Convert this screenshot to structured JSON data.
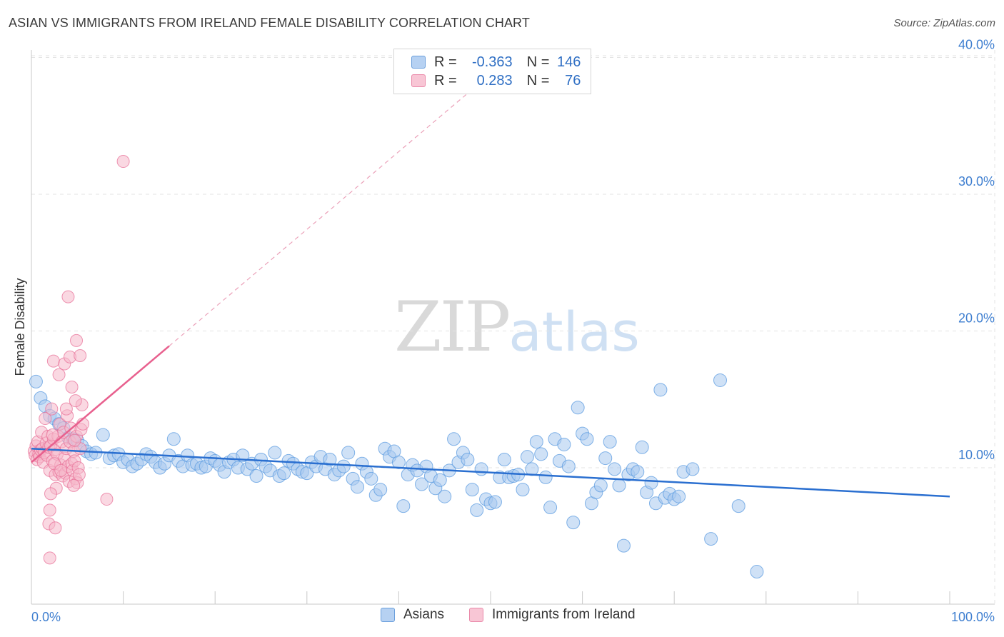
{
  "header": {
    "title": "ASIAN VS IMMIGRANTS FROM IRELAND FEMALE DISABILITY CORRELATION CHART",
    "source": "Source: ZipAtlas.com"
  },
  "watermark": {
    "part1": "ZIP",
    "part2": "atlas"
  },
  "legend": {
    "rows": [
      {
        "r_label": "R =",
        "r_value": "-0.363",
        "n_label": "N =",
        "n_value": "146",
        "color": "#a8c8ef"
      },
      {
        "r_label": "R =",
        "r_value": "0.283",
        "n_label": "N =",
        "n_value": "76",
        "color": "#f6b8cb"
      }
    ]
  },
  "bottom_legend": [
    {
      "label": "Asians",
      "color": "#a8c8ef"
    },
    {
      "label": "Immigrants from Ireland",
      "color": "#f6b8cb"
    }
  ],
  "chart_data": {
    "type": "scatter",
    "title": "ASIAN VS IMMIGRANTS FROM IRELAND FEMALE DISABILITY CORRELATION CHART",
    "xlabel": "",
    "ylabel": "Female Disability",
    "xlim": [
      0,
      100
    ],
    "ylim": [
      0,
      41
    ],
    "x_tick_labels": [
      "0.0%",
      "100.0%"
    ],
    "y_ticks": [
      10,
      20,
      30,
      40
    ],
    "y_tick_labels": [
      "10.0%",
      "20.0%",
      "30.0%",
      "40.0%"
    ],
    "grid": true,
    "series": [
      {
        "name": "Asians",
        "color": "#5b9be0",
        "fill": "#a8c8ef",
        "trend": {
          "x": [
            0,
            100
          ],
          "y": [
            11.4,
            7.9
          ]
        },
        "points": [
          [
            0.5,
            16.3
          ],
          [
            1.0,
            15.1
          ],
          [
            1.5,
            14.5
          ],
          [
            2.0,
            13.8
          ],
          [
            2.5,
            13.6
          ],
          [
            3.0,
            13.2
          ],
          [
            3.5,
            12.9
          ],
          [
            4.0,
            12.2
          ],
          [
            4.5,
            12.1
          ],
          [
            5.0,
            12.0
          ],
          [
            5.5,
            11.6
          ],
          [
            6.0,
            11.2
          ],
          [
            6.5,
            11.0
          ],
          [
            7.0,
            11.1
          ],
          [
            7.8,
            12.4
          ],
          [
            8.5,
            10.7
          ],
          [
            9.0,
            10.9
          ],
          [
            9.5,
            11.0
          ],
          [
            10.0,
            10.4
          ],
          [
            10.5,
            10.6
          ],
          [
            11.0,
            10.1
          ],
          [
            11.5,
            10.3
          ],
          [
            12.0,
            10.6
          ],
          [
            12.5,
            11.0
          ],
          [
            13.0,
            10.8
          ],
          [
            13.5,
            10.4
          ],
          [
            14.0,
            10.0
          ],
          [
            14.5,
            10.3
          ],
          [
            15.0,
            10.9
          ],
          [
            15.5,
            12.1
          ],
          [
            16.0,
            10.5
          ],
          [
            16.5,
            10.1
          ],
          [
            17.0,
            10.9
          ],
          [
            17.5,
            10.2
          ],
          [
            18.0,
            10.3
          ],
          [
            18.5,
            10.0
          ],
          [
            19.0,
            10.1
          ],
          [
            19.5,
            10.7
          ],
          [
            20.0,
            10.5
          ],
          [
            20.5,
            10.2
          ],
          [
            21.0,
            9.7
          ],
          [
            21.5,
            10.4
          ],
          [
            22.0,
            10.6
          ],
          [
            22.5,
            10.0
          ],
          [
            23.0,
            10.9
          ],
          [
            23.5,
            9.9
          ],
          [
            24.0,
            10.3
          ],
          [
            24.5,
            9.4
          ],
          [
            25.0,
            10.6
          ],
          [
            25.5,
            10.1
          ],
          [
            26.0,
            9.8
          ],
          [
            26.5,
            11.1
          ],
          [
            27.0,
            9.4
          ],
          [
            27.5,
            9.6
          ],
          [
            28.0,
            10.5
          ],
          [
            28.5,
            10.3
          ],
          [
            29.0,
            9.9
          ],
          [
            29.5,
            9.7
          ],
          [
            30.0,
            9.6
          ],
          [
            30.5,
            10.4
          ],
          [
            31.0,
            10.1
          ],
          [
            31.5,
            10.8
          ],
          [
            32.0,
            9.9
          ],
          [
            32.5,
            10.6
          ],
          [
            33.0,
            9.5
          ],
          [
            33.5,
            9.8
          ],
          [
            34.0,
            10.1
          ],
          [
            34.5,
            11.1
          ],
          [
            35.0,
            9.2
          ],
          [
            35.5,
            8.6
          ],
          [
            36.0,
            10.3
          ],
          [
            36.5,
            9.7
          ],
          [
            37.0,
            9.2
          ],
          [
            37.5,
            8.0
          ],
          [
            38.0,
            8.4
          ],
          [
            38.5,
            11.4
          ],
          [
            39.0,
            10.8
          ],
          [
            39.5,
            11.2
          ],
          [
            40.0,
            10.4
          ],
          [
            40.5,
            7.2
          ],
          [
            41.0,
            9.5
          ],
          [
            41.5,
            10.2
          ],
          [
            42.0,
            9.8
          ],
          [
            42.5,
            8.8
          ],
          [
            43.0,
            10.1
          ],
          [
            43.5,
            9.4
          ],
          [
            44.0,
            8.5
          ],
          [
            44.5,
            9.1
          ],
          [
            45.0,
            7.9
          ],
          [
            45.5,
            9.8
          ],
          [
            46.0,
            12.1
          ],
          [
            46.5,
            10.4
          ],
          [
            47.0,
            11.1
          ],
          [
            47.5,
            10.6
          ],
          [
            48.0,
            8.4
          ],
          [
            48.5,
            6.9
          ],
          [
            49.0,
            9.9
          ],
          [
            49.5,
            7.7
          ],
          [
            50.0,
            7.4
          ],
          [
            50.5,
            7.5
          ],
          [
            51.0,
            9.3
          ],
          [
            51.5,
            10.6
          ],
          [
            52.0,
            9.3
          ],
          [
            52.5,
            9.4
          ],
          [
            53.0,
            9.5
          ],
          [
            53.5,
            8.4
          ],
          [
            54.0,
            10.8
          ],
          [
            54.5,
            9.9
          ],
          [
            55.0,
            11.9
          ],
          [
            55.5,
            11.0
          ],
          [
            56.0,
            9.3
          ],
          [
            56.5,
            7.1
          ],
          [
            57.0,
            12.1
          ],
          [
            57.5,
            10.5
          ],
          [
            58.0,
            11.7
          ],
          [
            58.5,
            10.1
          ],
          [
            59.0,
            6.0
          ],
          [
            59.5,
            14.4
          ],
          [
            60.0,
            12.5
          ],
          [
            60.5,
            12.1
          ],
          [
            61.0,
            7.4
          ],
          [
            61.5,
            8.2
          ],
          [
            62.0,
            8.7
          ],
          [
            62.5,
            10.7
          ],
          [
            63.0,
            11.9
          ],
          [
            63.5,
            9.9
          ],
          [
            64.0,
            8.7
          ],
          [
            64.5,
            4.3
          ],
          [
            65.0,
            9.5
          ],
          [
            65.5,
            9.9
          ],
          [
            66.0,
            9.7
          ],
          [
            66.5,
            11.5
          ],
          [
            67.0,
            8.2
          ],
          [
            67.5,
            8.9
          ],
          [
            68.0,
            7.4
          ],
          [
            68.5,
            15.7
          ],
          [
            69.0,
            7.8
          ],
          [
            69.5,
            8.1
          ],
          [
            70.0,
            7.7
          ],
          [
            70.5,
            7.9
          ],
          [
            71.0,
            9.7
          ],
          [
            72.0,
            9.9
          ],
          [
            74.0,
            4.8
          ],
          [
            75.0,
            16.4
          ],
          [
            77.0,
            7.2
          ],
          [
            79.0,
            2.4
          ]
        ]
      },
      {
        "name": "Immigrants from Ireland",
        "color": "#e8739a",
        "fill": "#f6b8cb",
        "trend": {
          "x": [
            0,
            15
          ],
          "y": [
            10.4,
            18.9
          ]
        },
        "trend_extended": {
          "x": [
            15,
            50
          ],
          "y": [
            18.9,
            38.8
          ]
        },
        "points": [
          [
            0.3,
            11.2
          ],
          [
            0.4,
            10.9
          ],
          [
            0.5,
            11.6
          ],
          [
            0.6,
            10.6
          ],
          [
            0.7,
            11.9
          ],
          [
            0.8,
            11.0
          ],
          [
            0.9,
            10.8
          ],
          [
            1.0,
            11.3
          ],
          [
            1.1,
            12.6
          ],
          [
            1.2,
            11.4
          ],
          [
            1.3,
            10.4
          ],
          [
            1.4,
            11.1
          ],
          [
            1.5,
            13.6
          ],
          [
            1.6,
            11.8
          ],
          [
            1.7,
            10.9
          ],
          [
            1.8,
            12.3
          ],
          [
            1.9,
            11.5
          ],
          [
            2.0,
            9.8
          ],
          [
            2.1,
            11.6
          ],
          [
            2.2,
            14.3
          ],
          [
            2.3,
            10.5
          ],
          [
            2.4,
            12.1
          ],
          [
            2.5,
            11.3
          ],
          [
            2.6,
            9.5
          ],
          [
            2.7,
            8.5
          ],
          [
            2.8,
            11.0
          ],
          [
            2.9,
            12.3
          ],
          [
            3.0,
            9.7
          ],
          [
            3.1,
            13.2
          ],
          [
            3.2,
            10.2
          ],
          [
            3.3,
            11.9
          ],
          [
            3.4,
            9.4
          ],
          [
            3.5,
            12.6
          ],
          [
            3.6,
            10.7
          ],
          [
            3.7,
            9.6
          ],
          [
            3.8,
            11.4
          ],
          [
            3.9,
            13.8
          ],
          [
            4.0,
            10.1
          ],
          [
            4.1,
            9.0
          ],
          [
            4.2,
            11.9
          ],
          [
            4.3,
            12.9
          ],
          [
            4.4,
            10.3
          ],
          [
            4.5,
            9.8
          ],
          [
            4.6,
            11.2
          ],
          [
            4.7,
            10.5
          ],
          [
            4.8,
            9.2
          ],
          [
            4.9,
            12.3
          ],
          [
            5.0,
            8.9
          ],
          [
            5.1,
            10.0
          ],
          [
            5.2,
            9.5
          ],
          [
            5.3,
            11.4
          ],
          [
            5.4,
            12.8
          ],
          [
            5.5,
            14.6
          ],
          [
            5.6,
            13.2
          ],
          [
            2.0,
            6.9
          ],
          [
            1.9,
            5.9
          ],
          [
            2.0,
            3.4
          ],
          [
            2.1,
            8.1
          ],
          [
            2.3,
            12.4
          ],
          [
            2.4,
            17.8
          ],
          [
            2.5,
            10.3
          ],
          [
            2.6,
            5.6
          ],
          [
            3.0,
            16.8
          ],
          [
            3.2,
            9.8
          ],
          [
            3.6,
            17.6
          ],
          [
            3.8,
            14.3
          ],
          [
            4.0,
            22.5
          ],
          [
            4.2,
            18.1
          ],
          [
            4.4,
            15.9
          ],
          [
            4.6,
            8.7
          ],
          [
            4.7,
            12.0
          ],
          [
            4.8,
            14.9
          ],
          [
            4.9,
            19.3
          ],
          [
            5.3,
            18.2
          ],
          [
            8.2,
            7.7
          ],
          [
            10.0,
            32.4
          ]
        ]
      }
    ]
  }
}
